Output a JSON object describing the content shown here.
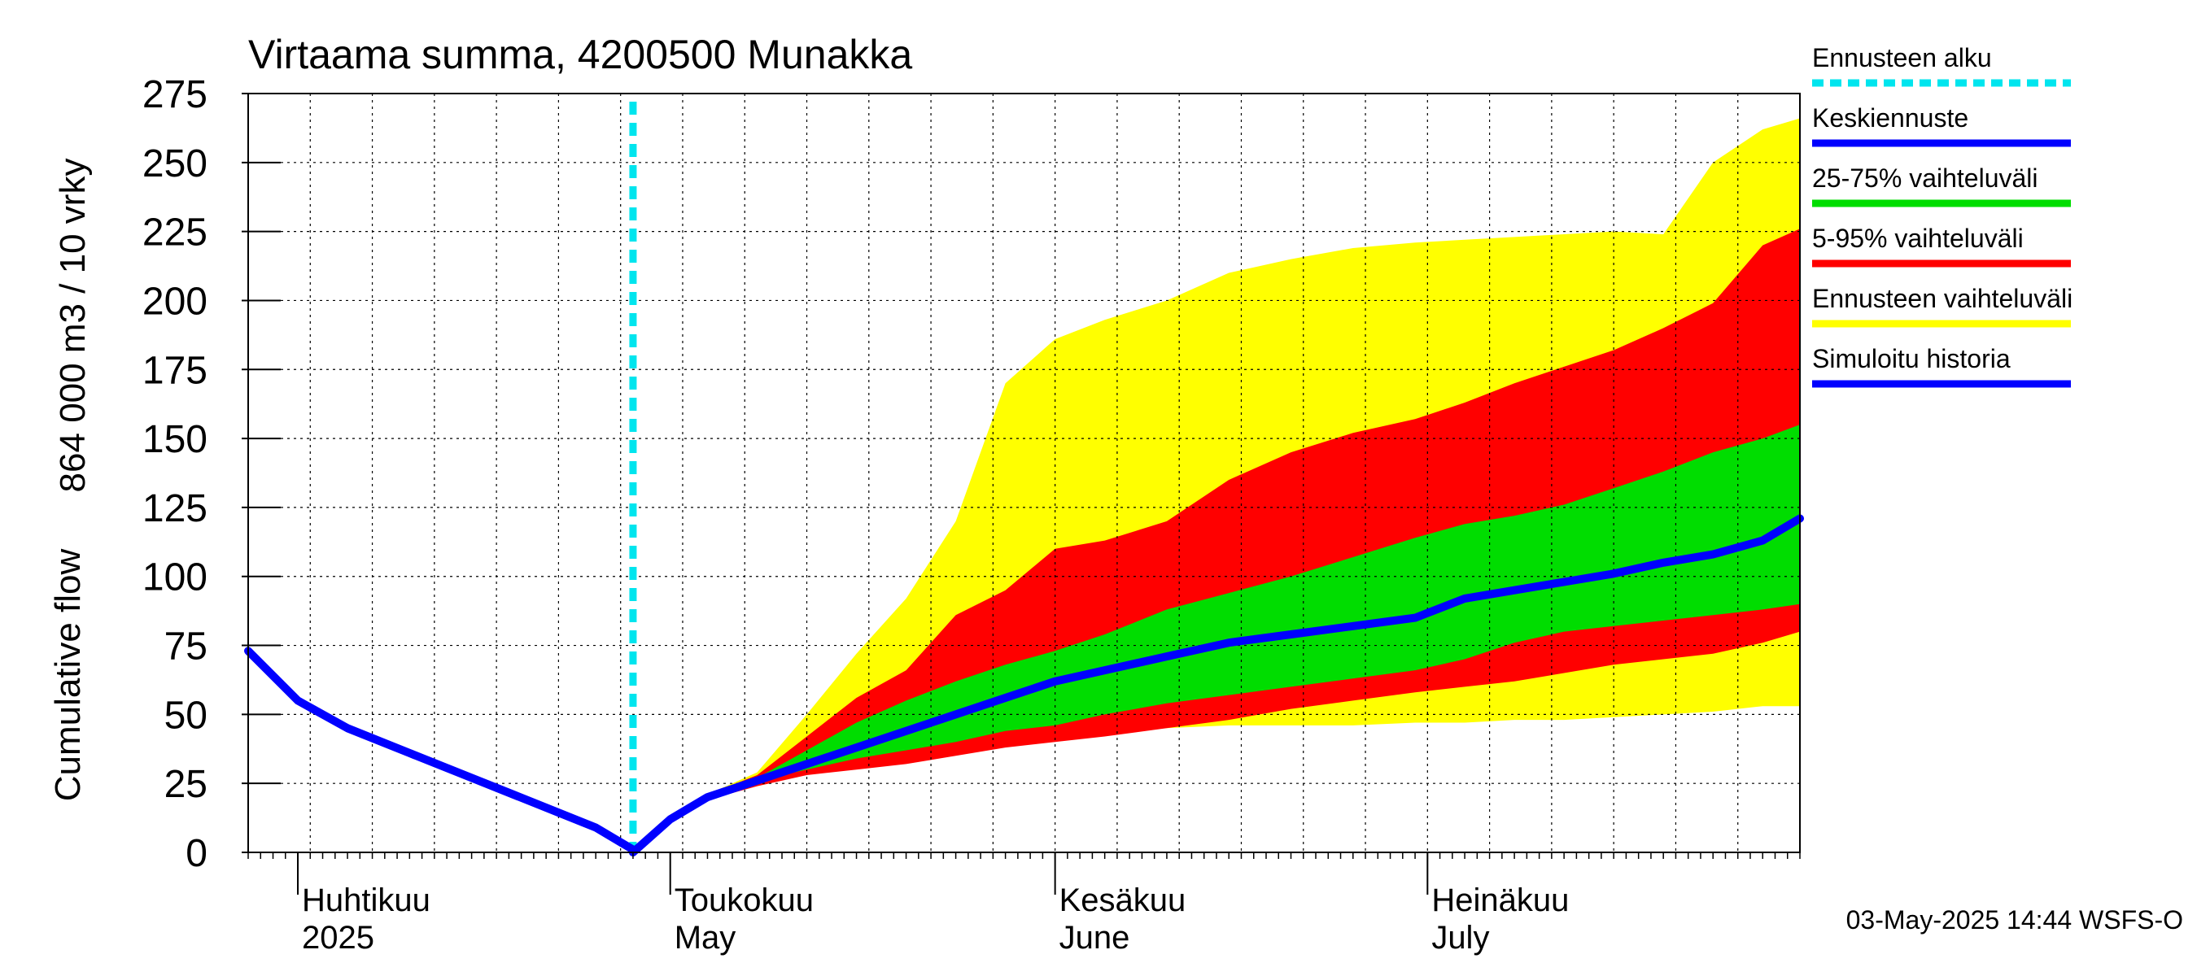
{
  "chart_data": {
    "type": "area",
    "title": "Virtaama summa, 4200500 Munakka",
    "ylabel_line1": "864 000 m3 / 10 vrky",
    "ylabel_line2": "Cumulative flow",
    "ylim": [
      0,
      275
    ],
    "yticks": [
      0,
      25,
      50,
      75,
      100,
      125,
      150,
      175,
      200,
      225,
      250,
      275
    ],
    "xlim": [
      "2025-03-28",
      "2025-07-31"
    ],
    "month_labels": [
      {
        "date": "2025-04-01",
        "fi": "Huhtikuu",
        "en": "2025"
      },
      {
        "date": "2025-05-01",
        "fi": "Toukokuu",
        "en": "May"
      },
      {
        "date": "2025-06-01",
        "fi": "Kesäkuu",
        "en": "June"
      },
      {
        "date": "2025-07-01",
        "fi": "Heinäkuu",
        "en": "July"
      }
    ],
    "forecast_start": "2025-04-28",
    "grid": true,
    "legend_position": "right",
    "legend": [
      {
        "label": "Ennusteen alku",
        "color": "#00e5ee",
        "style": "dashed"
      },
      {
        "label": "Keskiennuste",
        "color": "#0000ff",
        "style": "solid"
      },
      {
        "label": "25-75% vaihteluväli",
        "color": "#00dd00",
        "style": "solid"
      },
      {
        "label": "5-95% vaihteluväli",
        "color": "#ff0000",
        "style": "solid"
      },
      {
        "label": "Ennusteen vaihteluväli",
        "color": "#ffff00",
        "style": "solid"
      },
      {
        "label": "Simuloitu historia",
        "color": "#0000ff",
        "style": "solid"
      }
    ],
    "footer": "03-May-2025 14:44 WSFS-O",
    "x": [
      "2025-03-28",
      "2025-04-01",
      "2025-04-05",
      "2025-04-10",
      "2025-04-15",
      "2025-04-20",
      "2025-04-25",
      "2025-04-28",
      "2025-05-01",
      "2025-05-04",
      "2025-05-08",
      "2025-05-12",
      "2025-05-16",
      "2025-05-20",
      "2025-05-24",
      "2025-05-28",
      "2025-06-01",
      "2025-06-05",
      "2025-06-10",
      "2025-06-15",
      "2025-06-20",
      "2025-06-25",
      "2025-06-30",
      "2025-07-04",
      "2025-07-08",
      "2025-07-12",
      "2025-07-16",
      "2025-07-20",
      "2025-07-24",
      "2025-07-28",
      "2025-07-31"
    ],
    "series": [
      {
        "name": "Ennusteen vaihteluväli",
        "role": "band",
        "color": "#ffff00",
        "lower": [
          null,
          null,
          null,
          null,
          null,
          null,
          null,
          0,
          12,
          20,
          26,
          30,
          34,
          37,
          40,
          42,
          43,
          44,
          45,
          46,
          46,
          46,
          47,
          47,
          48,
          48,
          49,
          50,
          51,
          53,
          53
        ],
        "upper": [
          null,
          null,
          null,
          null,
          null,
          null,
          null,
          0,
          12,
          21,
          29,
          50,
          72,
          92,
          120,
          170,
          186,
          193,
          200,
          210,
          215,
          219,
          221,
          222,
          223,
          224,
          225,
          224,
          250,
          262,
          266
        ]
      },
      {
        "name": "5-95% vaihteluväli",
        "role": "band",
        "color": "#ff0000",
        "lower": [
          null,
          null,
          null,
          null,
          null,
          null,
          null,
          0,
          12,
          19,
          24,
          28,
          30,
          32,
          35,
          38,
          40,
          42,
          45,
          48,
          52,
          55,
          58,
          60,
          62,
          65,
          68,
          70,
          72,
          76,
          80
        ],
        "upper": [
          null,
          null,
          null,
          null,
          null,
          null,
          null,
          0,
          12,
          21,
          28,
          42,
          56,
          66,
          86,
          95,
          110,
          113,
          120,
          135,
          145,
          152,
          157,
          163,
          170,
          176,
          182,
          190,
          199,
          220,
          226
        ]
      },
      {
        "name": "25-75% vaihteluväli",
        "role": "band",
        "color": "#00dd00",
        "lower": [
          null,
          null,
          null,
          null,
          null,
          null,
          null,
          0,
          12,
          20,
          26,
          30,
          34,
          37,
          40,
          44,
          46,
          50,
          54,
          57,
          60,
          63,
          66,
          70,
          76,
          80,
          82,
          84,
          86,
          88,
          90
        ],
        "upper": [
          null,
          null,
          null,
          null,
          null,
          null,
          null,
          0,
          12,
          20,
          27,
          37,
          47,
          55,
          62,
          68,
          73,
          79,
          88,
          94,
          100,
          107,
          114,
          119,
          122,
          126,
          132,
          138,
          145,
          150,
          155
        ]
      },
      {
        "name": "Keskiennuste",
        "role": "line",
        "color": "#0000ff",
        "values": [
          null,
          null,
          null,
          null,
          null,
          null,
          null,
          0,
          12,
          20,
          26,
          32,
          38,
          44,
          50,
          56,
          62,
          66,
          71,
          76,
          79,
          82,
          85,
          92,
          95,
          98,
          101,
          105,
          108,
          113,
          121
        ]
      },
      {
        "name": "Simuloitu historia",
        "role": "line",
        "color": "#0000ff",
        "values": [
          73,
          55,
          45,
          36,
          27,
          18,
          9,
          1,
          null,
          null,
          null,
          null,
          null,
          null,
          null,
          null,
          null,
          null,
          null,
          null,
          null,
          null,
          null,
          null,
          null,
          null,
          null,
          null,
          null,
          null,
          null
        ]
      }
    ]
  }
}
